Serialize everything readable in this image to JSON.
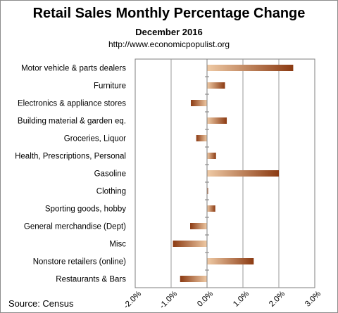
{
  "header": {
    "title": "Retail Sales Monthly  Percentage Change",
    "subtitle": "December 2016",
    "url": "http://www.economicpopulist.org"
  },
  "footer": {
    "source": "Source:  Census"
  },
  "colors": {
    "bar_dark": "#8b3a12",
    "bar_light": "#efcaa5",
    "grid": "#9a9a9a",
    "axis": "#7f7f7f"
  },
  "chart_data": {
    "type": "bar",
    "orientation": "horizontal",
    "categories": [
      "Motor vehicle & parts dealers",
      "Furniture",
      "Electronics & appliance stores",
      "Building material & garden eq.",
      "Groceries, Liquor",
      "Health, Prescriptions, Personal",
      "Gasoline",
      "Clothing",
      "Sporting goods, hobby",
      "General merchandise (Dept)",
      "Misc",
      "Nonstore retailers (online)",
      "Restaurants & Bars"
    ],
    "values": [
      2.4,
      0.5,
      -0.45,
      0.55,
      -0.3,
      0.25,
      2.0,
      0.03,
      0.23,
      -0.47,
      -0.95,
      1.3,
      -0.75
    ],
    "xlim": [
      -2.0,
      3.0
    ],
    "xticks": [
      "-2.0%",
      "-1.0%",
      "0.0%",
      "1.0%",
      "2.0%",
      "3.0%"
    ],
    "tick_values": [
      -2.0,
      -1.0,
      0.0,
      1.0,
      2.0,
      3.0
    ],
    "grid": "vertical",
    "legend": "none"
  }
}
